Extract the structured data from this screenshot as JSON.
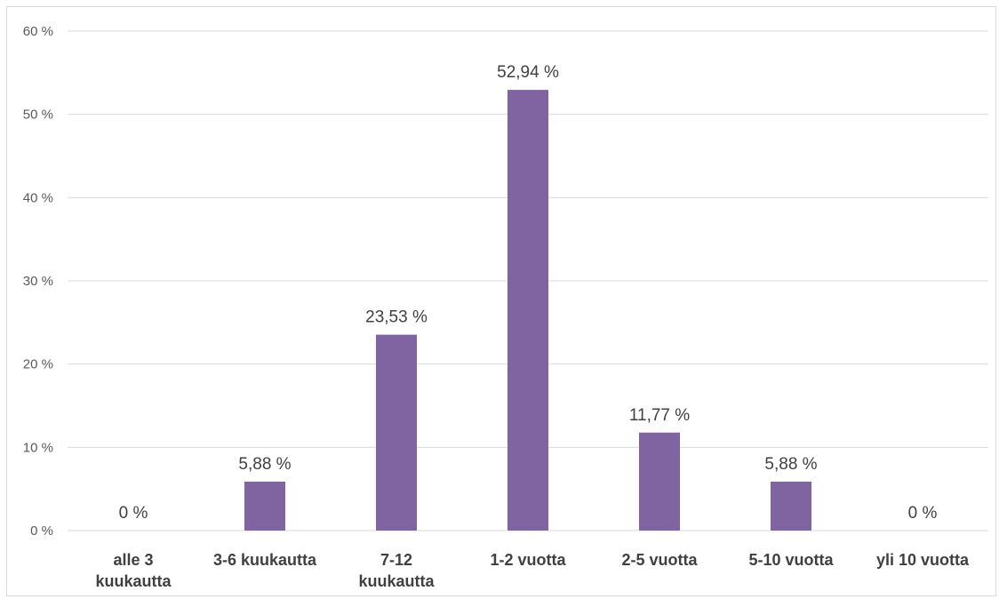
{
  "chart_data": {
    "type": "bar",
    "categories": [
      [
        "alle 3",
        "kuukautta"
      ],
      [
        "3-6 kuukautta"
      ],
      [
        "7-12",
        "kuukautta"
      ],
      [
        "1-2 vuotta"
      ],
      [
        "2-5 vuotta"
      ],
      [
        "5-10 vuotta"
      ],
      [
        "yli 10 vuotta"
      ]
    ],
    "values": [
      0,
      5.88,
      23.53,
      52.94,
      11.77,
      5.88,
      0
    ],
    "data_labels": [
      "0 %",
      "5,88 %",
      "23,53 %",
      "52,94 %",
      "11,77 %",
      "5,88 %",
      "0 %"
    ],
    "y_ticks": [
      {
        "value": 0,
        "label": "0 %"
      },
      {
        "value": 10,
        "label": "10 %"
      },
      {
        "value": 20,
        "label": "20 %"
      },
      {
        "value": 30,
        "label": "30 %"
      },
      {
        "value": 40,
        "label": "40 %"
      },
      {
        "value": 50,
        "label": "50 %"
      },
      {
        "value": 60,
        "label": "60 %"
      }
    ],
    "ylim": [
      0,
      60
    ],
    "grid": true,
    "legend": "none",
    "bar_color": "#8064a2",
    "grid_color": "#d9d9d9"
  }
}
